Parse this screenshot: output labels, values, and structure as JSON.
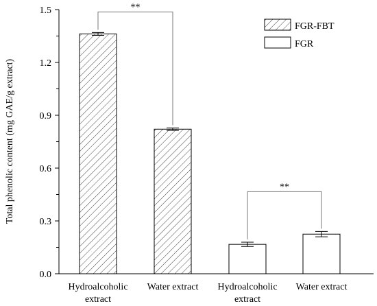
{
  "chart_data": {
    "type": "bar",
    "title": "",
    "xlabel": "",
    "ylabel": "Total phenolic content (mg GAE/g extract)",
    "ylim": [
      0,
      1.5
    ],
    "yticks": [
      "0.0",
      "0.3",
      "0.6",
      "0.9",
      "1.2",
      "1.5"
    ],
    "categories": [
      [
        "Hydroalcoholic",
        "extract"
      ],
      [
        "Water extract"
      ],
      [
        "Hydroalcoholic",
        "extract"
      ],
      [
        "Water extract"
      ]
    ],
    "series": [
      {
        "name": "FGR-FBT",
        "pattern": "hatched"
      },
      {
        "name": "FGR",
        "pattern": "open"
      }
    ],
    "bars": [
      {
        "series": 0,
        "value": 1.362,
        "error": 0.008
      },
      {
        "series": 0,
        "value": 0.821,
        "error": 0.007
      },
      {
        "series": 1,
        "value": 0.167,
        "error": 0.012
      },
      {
        "series": 1,
        "value": 0.225,
        "error": 0.015
      }
    ],
    "significance": [
      {
        "between": [
          0,
          1
        ],
        "label": "**"
      },
      {
        "between": [
          2,
          3
        ],
        "label": "**"
      }
    ],
    "legend": "top-right",
    "grid": false
  }
}
